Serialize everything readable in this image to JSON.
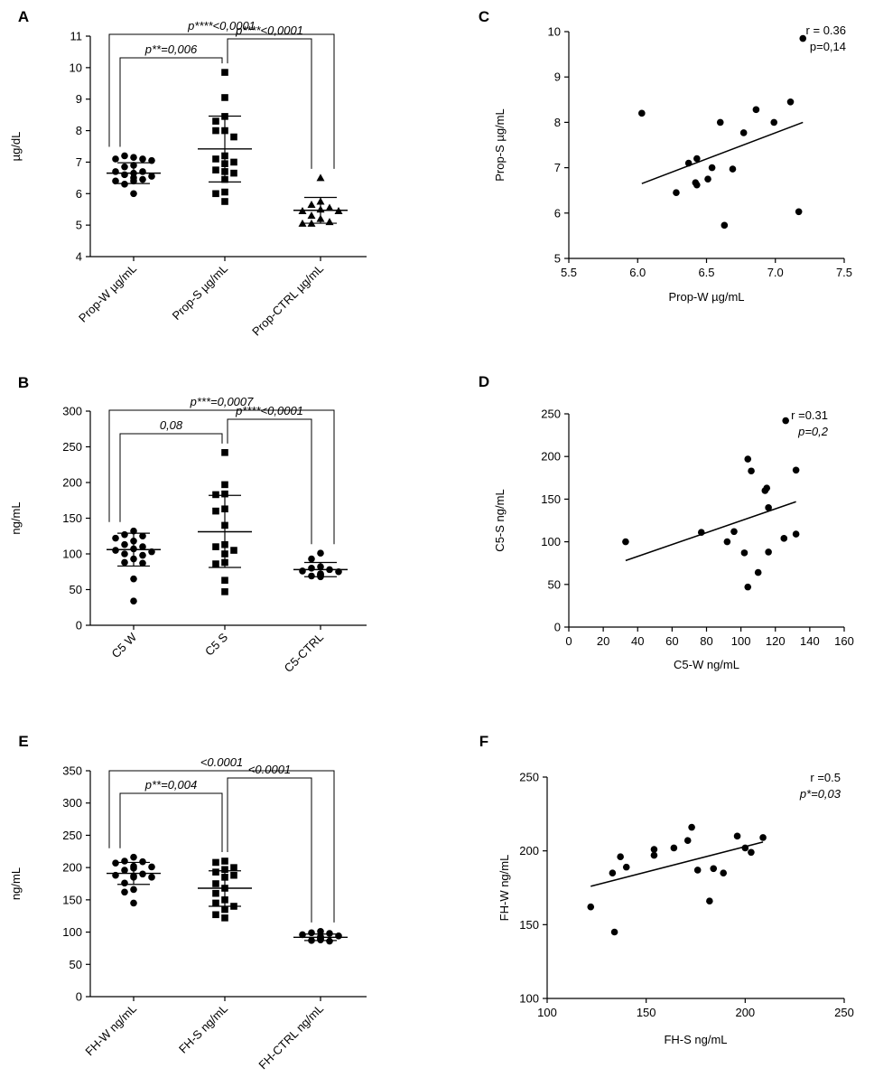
{
  "figure": {
    "title": ""
  },
  "chart_data": [
    {
      "id": "A",
      "panel_label": "A",
      "type": "scatter",
      "ylabel": "µg/dL",
      "ylim": [
        4,
        11
      ],
      "yticks": [
        4,
        5,
        6,
        7,
        8,
        9,
        10,
        11
      ],
      "categories": [
        "Prop-W µg/mL",
        "Prop-S µg/mL",
        "Prop-CTRL µg/mL"
      ],
      "markers": [
        "circle",
        "square",
        "triangle"
      ],
      "groups": [
        {
          "name": "Prop-W µg/mL",
          "mean": 6.65,
          "sd_low": 6.32,
          "sd_high": 6.98,
          "values": [
            7.15,
            7.2,
            7.1,
            7.1,
            7.05,
            6.9,
            6.85,
            6.7,
            6.7,
            6.65,
            6.6,
            6.55,
            6.5,
            6.45,
            6.4,
            6.4,
            6.3,
            6.0
          ]
        },
        {
          "name": "Prop-S µg/mL",
          "mean": 7.42,
          "sd_low": 6.37,
          "sd_high": 8.46,
          "values": [
            9.85,
            9.05,
            8.45,
            8.3,
            8.0,
            8.0,
            7.8,
            7.2,
            7.1,
            7.0,
            6.95,
            6.75,
            6.7,
            6.65,
            6.45,
            6.05,
            6.0,
            5.75
          ]
        },
        {
          "name": "Prop-CTRL µg/mL",
          "mean": 5.47,
          "sd_low": 5.06,
          "sd_high": 5.88,
          "values": [
            6.5,
            5.75,
            5.65,
            5.55,
            5.5,
            5.45,
            5.45,
            5.3,
            5.2,
            5.1,
            5.05,
            5.05
          ]
        }
      ],
      "comparisons": [
        {
          "from": 0,
          "to": 1,
          "label": "p**=0,006",
          "italic": true
        },
        {
          "from": 1,
          "to": 2,
          "label": "p****<0,0001",
          "italic": true
        },
        {
          "from": 0,
          "to": 2,
          "label": "p****<0,0001",
          "italic": true
        }
      ]
    },
    {
      "id": "B",
      "panel_label": "B",
      "type": "scatter",
      "ylabel": "ng/mL",
      "ylim": [
        0,
        300
      ],
      "yticks": [
        0,
        50,
        100,
        150,
        200,
        250,
        300
      ],
      "categories": [
        "C5 W",
        "C5 S",
        "C5-CTRL"
      ],
      "markers": [
        "circle",
        "square",
        "circle"
      ],
      "groups": [
        {
          "name": "C5 W",
          "mean": 106,
          "sd_low": 83,
          "sd_high": 129,
          "values": [
            132,
            127,
            125,
            122,
            118,
            113,
            110,
            107,
            105,
            103,
            100,
            98,
            93,
            88,
            87,
            65,
            34
          ]
        },
        {
          "name": "C5 S",
          "mean": 131,
          "sd_low": 81,
          "sd_high": 182,
          "values": [
            242,
            197,
            184,
            183,
            163,
            160,
            140,
            113,
            110,
            105,
            100,
            88,
            86,
            63,
            47
          ]
        },
        {
          "name": "C5-CTRL",
          "mean": 78,
          "sd_low": 68,
          "sd_high": 88,
          "values": [
            101,
            93,
            82,
            80,
            78,
            76,
            75,
            72,
            72,
            70,
            70,
            69,
            68
          ]
        }
      ],
      "comparisons": [
        {
          "from": 0,
          "to": 1,
          "label": "0,08",
          "italic": true
        },
        {
          "from": 1,
          "to": 2,
          "label": "p****<0,0001",
          "italic": true
        },
        {
          "from": 0,
          "to": 2,
          "label": "p***=0,0007",
          "italic": true
        }
      ]
    },
    {
      "id": "E",
      "panel_label": "E",
      "type": "scatter",
      "ylabel": "ng/mL",
      "ylim": [
        0,
        350
      ],
      "yticks": [
        0,
        50,
        100,
        150,
        200,
        250,
        300,
        350
      ],
      "categories": [
        "FH-W ng/mL",
        "FH-S ng/mL",
        "FH-CTRL ng/mL"
      ],
      "markers": [
        "circle",
        "square",
        "circle"
      ],
      "groups": [
        {
          "name": "FH-W ng/mL",
          "mean": 191,
          "sd_low": 174,
          "sd_high": 208,
          "values": [
            216,
            210,
            209,
            207,
            202,
            201,
            199,
            196,
            190,
            188,
            187,
            185,
            185,
            176,
            166,
            162,
            145
          ]
        },
        {
          "name": "FH-S ng/mL",
          "mean": 168,
          "sd_low": 140,
          "sd_high": 195,
          "values": [
            210,
            208,
            200,
            197,
            193,
            188,
            185,
            175,
            168,
            160,
            150,
            145,
            140,
            135,
            127,
            122
          ]
        },
        {
          "name": "FH-CTRL ng/mL",
          "mean": 92,
          "sd_low": 87,
          "sd_high": 97,
          "values": [
            101,
            99,
            98,
            96,
            94,
            93,
            92,
            91,
            90,
            89,
            88,
            87,
            86
          ]
        }
      ],
      "comparisons": [
        {
          "from": 0,
          "to": 1,
          "label": "p**=0,004",
          "italic": true
        },
        {
          "from": 1,
          "to": 2,
          "label": "<0.0001",
          "italic": true
        },
        {
          "from": 0,
          "to": 2,
          "label": "<0.0001",
          "italic": true
        }
      ]
    },
    {
      "id": "C",
      "panel_label": "C",
      "type": "scatter",
      "xlabel": "Prop-W µg/mL",
      "ylabel": "Prop-S µg/mL",
      "xlim": [
        5.5,
        7.5
      ],
      "ylim": [
        5,
        10
      ],
      "xticks": [
        5.5,
        6.0,
        6.5,
        7.0,
        7.5
      ],
      "xtick_labels": [
        "5.5",
        "6.0",
        "6.5",
        "7.0",
        "7.5"
      ],
      "yticks": [
        5,
        6,
        7,
        8,
        9,
        10
      ],
      "points": [
        [
          6.03,
          8.2
        ],
        [
          6.28,
          6.45
        ],
        [
          6.37,
          7.1
        ],
        [
          6.42,
          6.67
        ],
        [
          6.43,
          7.2
        ],
        [
          6.43,
          6.62
        ],
        [
          6.51,
          6.75
        ],
        [
          6.54,
          7.0
        ],
        [
          6.6,
          8.0
        ],
        [
          6.63,
          5.73
        ],
        [
          6.69,
          6.97
        ],
        [
          6.77,
          7.77
        ],
        [
          6.86,
          8.28
        ],
        [
          6.99,
          8.0
        ],
        [
          7.11,
          8.45
        ],
        [
          7.17,
          6.03
        ],
        [
          7.2,
          9.85
        ]
      ],
      "fit": [
        [
          6.03,
          6.65
        ],
        [
          7.2,
          8.0
        ]
      ],
      "stats": [
        {
          "text": "r = 0.36",
          "italic": false
        },
        {
          "text": "p=0,14",
          "italic": false
        }
      ]
    },
    {
      "id": "D",
      "panel_label": "D",
      "type": "scatter",
      "xlabel": "C5-W ng/mL",
      "ylabel": "C5-S ng/mL",
      "xlim": [
        0,
        160
      ],
      "ylim": [
        0,
        250
      ],
      "xticks": [
        0,
        20,
        40,
        60,
        80,
        100,
        120,
        140,
        160
      ],
      "xtick_labels": [
        "0",
        "20",
        "40",
        "60",
        "80",
        "100",
        "120",
        "140",
        "160"
      ],
      "yticks": [
        0,
        50,
        100,
        150,
        200,
        250
      ],
      "points": [
        [
          33,
          100
        ],
        [
          77,
          111
        ],
        [
          92,
          100
        ],
        [
          96,
          112
        ],
        [
          102,
          87
        ],
        [
          104,
          197
        ],
        [
          104,
          47
        ],
        [
          106,
          183
        ],
        [
          110,
          64
        ],
        [
          114,
          160
        ],
        [
          115,
          163
        ],
        [
          116,
          88
        ],
        [
          116,
          140
        ],
        [
          125,
          104
        ],
        [
          126,
          242
        ],
        [
          132,
          184
        ],
        [
          132,
          109
        ]
      ],
      "fit": [
        [
          33,
          78
        ],
        [
          132,
          147
        ]
      ],
      "stats": [
        {
          "text": "r =0.31",
          "italic": false
        },
        {
          "text": "p=0,2",
          "italic": true
        }
      ]
    },
    {
      "id": "F",
      "panel_label": "F",
      "type": "scatter",
      "xlabel": "FH-S ng/mL",
      "ylabel": "FH-W ng/mL",
      "xlim": [
        100,
        250
      ],
      "ylim": [
        100,
        250
      ],
      "xticks": [
        100,
        150,
        200,
        250
      ],
      "xtick_labels": [
        "100",
        "150",
        "200",
        "250"
      ],
      "yticks": [
        100,
        150,
        200,
        250
      ],
      "points": [
        [
          122,
          162
        ],
        [
          133,
          185
        ],
        [
          134,
          145
        ],
        [
          137,
          196
        ],
        [
          140,
          189
        ],
        [
          154,
          201
        ],
        [
          154,
          197
        ],
        [
          164,
          202
        ],
        [
          171,
          207
        ],
        [
          173,
          216
        ],
        [
          176,
          187
        ],
        [
          182,
          166
        ],
        [
          184,
          188
        ],
        [
          189,
          185
        ],
        [
          196,
          210
        ],
        [
          200,
          202
        ],
        [
          203,
          199
        ],
        [
          209,
          209
        ]
      ],
      "fit": [
        [
          122,
          176
        ],
        [
          209,
          206
        ]
      ],
      "stats": [
        {
          "text": "r =0.5",
          "italic": false
        },
        {
          "text": "p*=0,03",
          "italic": true
        }
      ]
    }
  ]
}
